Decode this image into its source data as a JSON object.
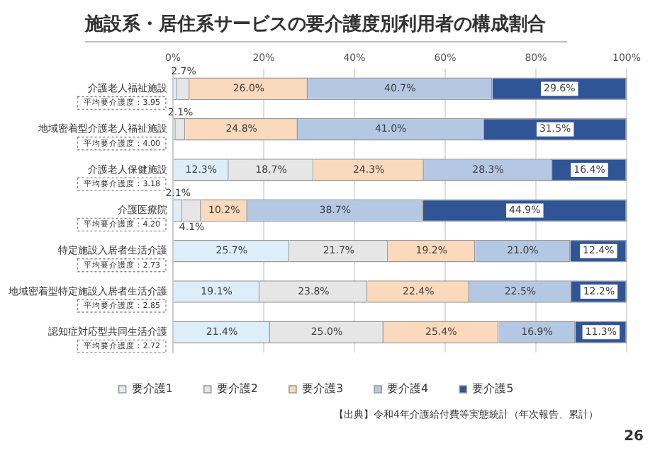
{
  "chart_data": {
    "type": "bar",
    "orientation": "horizontal",
    "stacked": true,
    "title": "施設系・居住系サービスの要介護度別利用者の構成割合",
    "categories": [
      "介護老人福祉施設",
      "地域密着型介護老人福祉施設",
      "介護老人保健施設",
      "介護医療院",
      "特定施設入居者生活介護",
      "地域密着型特定施設入居者生活介護",
      "認知症対応型共同生活介護"
    ],
    "series": [
      {
        "name": "要介護1",
        "color": "#ddeef8",
        "values": [
          1.0,
          0.6,
          12.3,
          2.1,
          25.7,
          19.1,
          21.4
        ],
        "value_labels": [
          null,
          null,
          "12.3%",
          "2.1%",
          "25.7%",
          "19.1%",
          "21.4%"
        ]
      },
      {
        "name": "要介護2",
        "color": "#e6e6e6",
        "values": [
          2.7,
          2.1,
          18.7,
          4.1,
          21.7,
          23.8,
          25.0
        ],
        "value_labels": [
          "2.7%",
          "2.1%",
          "18.7%",
          "4.1%",
          "21.7%",
          "23.8%",
          "25.0%"
        ]
      },
      {
        "name": "要介護3",
        "color": "#fbd9bd",
        "values": [
          26.0,
          24.8,
          24.3,
          10.2,
          19.2,
          22.4,
          25.4
        ],
        "value_labels": [
          "26.0%",
          "24.8%",
          "24.3%",
          "10.2%",
          "19.2%",
          "22.4%",
          "25.4%"
        ]
      },
      {
        "name": "要介護4",
        "color": "#b4c8e4",
        "values": [
          40.7,
          41.0,
          28.3,
          38.7,
          21.0,
          22.5,
          16.9
        ],
        "value_labels": [
          "40.7%",
          "41.0%",
          "28.3%",
          "38.7%",
          "21.0%",
          "22.5%",
          "16.9%"
        ]
      },
      {
        "name": "要介護5",
        "color": "#2f5597",
        "values": [
          29.6,
          31.5,
          16.4,
          44.9,
          12.4,
          12.2,
          11.3
        ],
        "value_labels": [
          "29.6%",
          "31.5%",
          "16.4%",
          "44.9%",
          "12.4%",
          "12.2%",
          "11.3%"
        ]
      }
    ],
    "xlim": [
      0,
      100
    ],
    "xticks": [
      {
        "value": 0,
        "label": "0%"
      },
      {
        "value": 20,
        "label": "20%"
      },
      {
        "value": 40,
        "label": "40%"
      },
      {
        "value": 60,
        "label": "60%"
      },
      {
        "value": 80,
        "label": "80%"
      },
      {
        "value": 100,
        "label": "100%"
      }
    ],
    "grid": "x",
    "legend": "bottom",
    "annotations": [
      "平均要介護度：3.95",
      "平均要介護度：4.00",
      "平均要介護度：3.18",
      "平均要介護度：4.20",
      "平均要介護度：2.73",
      "平均要介護度：2.85",
      "平均要介護度：2.72",
      "【出典】令和4年介護給付費等実態統計（年次報告、累計）",
      "26"
    ]
  }
}
